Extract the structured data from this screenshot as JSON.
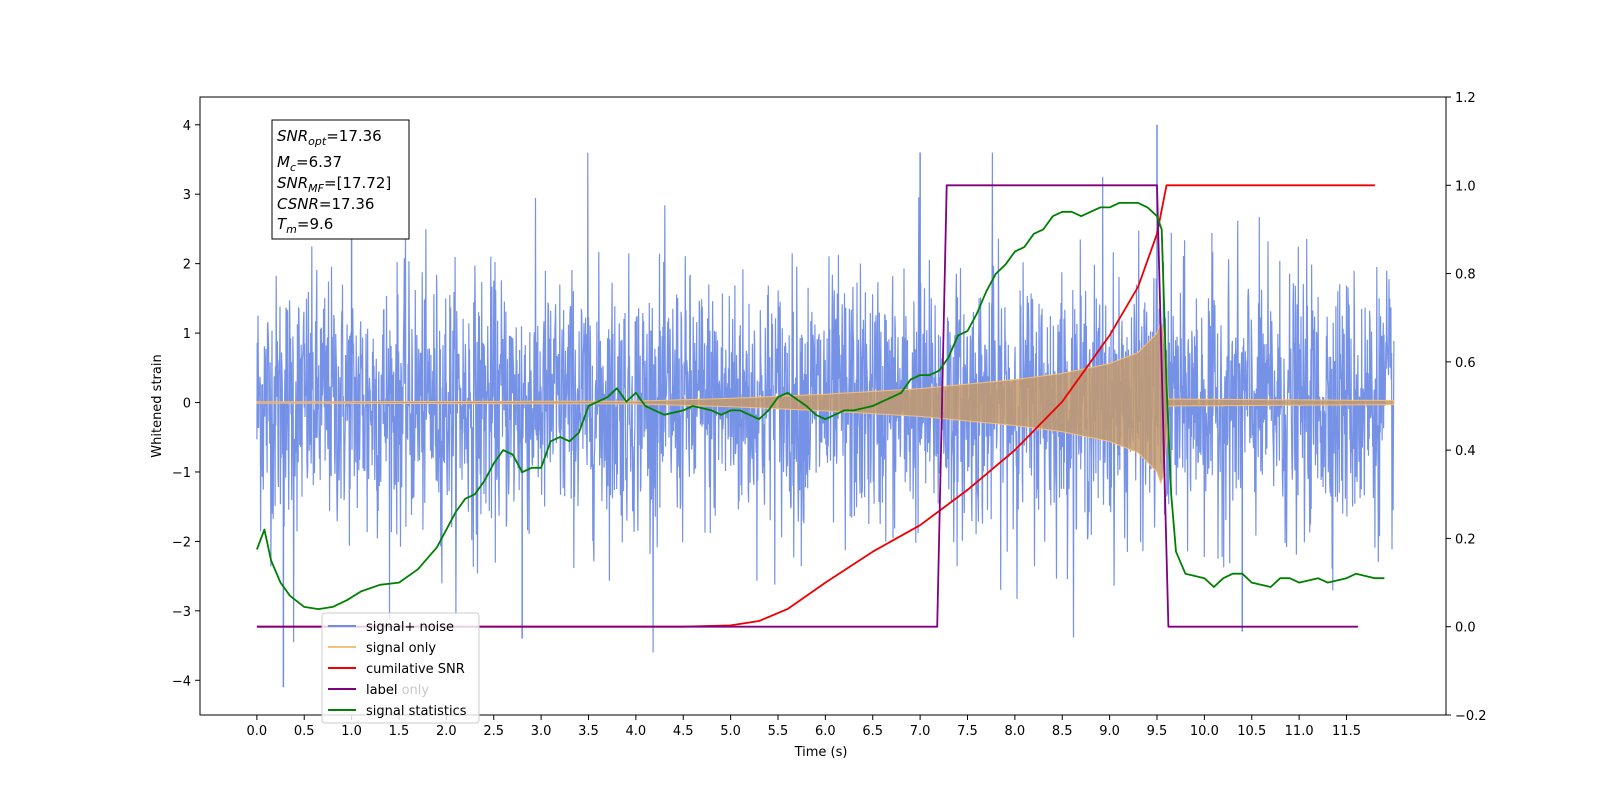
{
  "chart_data": {
    "type": "line",
    "xlabel": "Time (s)",
    "ylabel_left": "Whitened strain",
    "ylabel_right": "",
    "xlim": [
      -0.6,
      12.55
    ],
    "ylim_left": [
      -4.5,
      4.4
    ],
    "ylim_right": [
      -0.2,
      1.2
    ],
    "x_ticks": [
      "0.0",
      "0.5",
      "1.0",
      "1.5",
      "2.0",
      "2.5",
      "3.0",
      "3.5",
      "4.0",
      "4.5",
      "5.0",
      "5.5",
      "6.0",
      "6.5",
      "7.0",
      "7.5",
      "8.0",
      "8.5",
      "9.0",
      "9.5",
      "10.0",
      "10.5",
      "11.0",
      "11.5"
    ],
    "y_left_ticks": [
      "4",
      "3",
      "2",
      "1",
      "0",
      "−1",
      "−2",
      "−3",
      "−4"
    ],
    "y_right_ticks": [
      "1.2",
      "1.0",
      "0.8",
      "0.6",
      "0.4",
      "0.2",
      "0.0",
      "−0.2"
    ],
    "grid": false,
    "legend_position": "lower-left",
    "info_box": {
      "line1_main": "SNR",
      "line1_sub": "opt",
      "line1_val": "=17.36",
      "line2_main": "M",
      "line2_sub": "c",
      "line2_val": "=6.37",
      "line3_main": "SNR",
      "line3_sub": "MF",
      "line3_val": "=[17.72]",
      "line4_main": "CSNR",
      "line4_val": "=17.36",
      "line5_main": "T",
      "line5_sub": "m",
      "line5_val": "=9.6"
    },
    "series": [
      {
        "name": "signal+ noise",
        "axis": "left",
        "color": "#6f8ce6",
        "description_values": {
          "t_start": 0.0,
          "t_end": 12.0,
          "noise_std": 0.9,
          "max_peak": 4.0,
          "min_peak": -4.1
        }
      },
      {
        "name": "signal only",
        "axis": "left",
        "color": "#f5c07a",
        "envelope": {
          "x": [
            0.0,
            4.0,
            5.0,
            6.0,
            7.0,
            8.0,
            8.5,
            9.0,
            9.3,
            9.5,
            9.55,
            9.6,
            9.62,
            12.0
          ],
          "amp": [
            0.01,
            0.02,
            0.06,
            0.12,
            0.2,
            0.33,
            0.42,
            0.56,
            0.72,
            1.0,
            1.2,
            0.6,
            0.05,
            0.03
          ]
        }
      },
      {
        "name": "cumilative SNR",
        "axis": "right",
        "color": "#ee0000",
        "x": [
          0.0,
          4.5,
          5.0,
          5.3,
          5.6,
          6.0,
          6.5,
          7.0,
          7.5,
          8.0,
          8.5,
          9.0,
          9.3,
          9.5,
          9.6,
          9.62,
          11.8
        ],
        "values": [
          0.0,
          0.0,
          0.003,
          0.013,
          0.04,
          0.1,
          0.17,
          0.23,
          0.31,
          0.4,
          0.51,
          0.66,
          0.77,
          0.89,
          1.0,
          1.0,
          1.0
        ]
      },
      {
        "name": "label",
        "axis": "right",
        "color": "#800080",
        "x": [
          0.0,
          7.18,
          7.28,
          9.5,
          9.62,
          11.62
        ],
        "values": [
          0.0,
          0.0,
          1.0,
          1.0,
          0.0,
          0.0
        ]
      },
      {
        "name": "signal statistics",
        "axis": "right",
        "color": "#008000",
        "x": [
          0.0,
          0.08,
          0.15,
          0.25,
          0.35,
          0.5,
          0.65,
          0.8,
          0.95,
          1.1,
          1.3,
          1.5,
          1.7,
          1.9,
          2.0,
          2.1,
          2.2,
          2.3,
          2.4,
          2.5,
          2.6,
          2.7,
          2.8,
          2.9,
          3.0,
          3.1,
          3.2,
          3.3,
          3.4,
          3.5,
          3.6,
          3.7,
          3.8,
          3.9,
          4.0,
          4.1,
          4.2,
          4.3,
          4.5,
          4.6,
          4.8,
          4.9,
          5.0,
          5.1,
          5.3,
          5.4,
          5.5,
          5.6,
          5.8,
          5.9,
          6.0,
          6.1,
          6.2,
          6.3,
          6.5,
          6.6,
          6.8,
          6.9,
          7.0,
          7.1,
          7.2,
          7.3,
          7.4,
          7.5,
          7.6,
          7.7,
          7.8,
          7.9,
          8.0,
          8.1,
          8.2,
          8.3,
          8.4,
          8.5,
          8.6,
          8.7,
          8.8,
          8.9,
          9.0,
          9.1,
          9.2,
          9.3,
          9.4,
          9.5,
          9.55,
          9.6,
          9.65,
          9.7,
          9.8,
          10.0,
          10.1,
          10.2,
          10.3,
          10.4,
          10.5,
          10.7,
          10.8,
          10.9,
          11.0,
          11.2,
          11.3,
          11.5,
          11.6,
          11.8,
          11.9
        ],
        "values": [
          0.175,
          0.22,
          0.15,
          0.1,
          0.07,
          0.045,
          0.04,
          0.045,
          0.06,
          0.08,
          0.095,
          0.1,
          0.13,
          0.18,
          0.22,
          0.26,
          0.29,
          0.3,
          0.33,
          0.37,
          0.4,
          0.39,
          0.35,
          0.36,
          0.36,
          0.42,
          0.43,
          0.42,
          0.44,
          0.5,
          0.51,
          0.52,
          0.54,
          0.51,
          0.53,
          0.5,
          0.49,
          0.48,
          0.49,
          0.5,
          0.49,
          0.48,
          0.49,
          0.49,
          0.47,
          0.49,
          0.52,
          0.53,
          0.5,
          0.48,
          0.47,
          0.48,
          0.49,
          0.49,
          0.5,
          0.51,
          0.53,
          0.56,
          0.57,
          0.57,
          0.58,
          0.61,
          0.66,
          0.67,
          0.71,
          0.76,
          0.8,
          0.82,
          0.85,
          0.86,
          0.89,
          0.9,
          0.93,
          0.94,
          0.94,
          0.93,
          0.94,
          0.95,
          0.95,
          0.96,
          0.96,
          0.96,
          0.95,
          0.93,
          0.9,
          0.55,
          0.3,
          0.17,
          0.12,
          0.11,
          0.09,
          0.11,
          0.12,
          0.12,
          0.1,
          0.09,
          0.11,
          0.11,
          0.1,
          0.11,
          0.1,
          0.11,
          0.12,
          0.11,
          0.11
        ]
      }
    ],
    "legend_entries": [
      "signal+ noise",
      "signal only",
      "cumilative SNR",
      "label",
      "signal statistics"
    ],
    "legend_hidden_text": "label only"
  }
}
